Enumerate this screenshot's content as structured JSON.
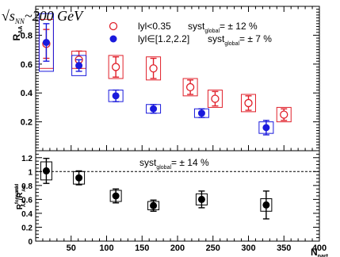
{
  "chart_data": [
    {
      "type": "scatter",
      "title": "√s_NN ~ 200 GeV",
      "title_parts": {
        "sqrt": "√",
        "s": "s",
        "sub": "NN",
        "rest": "~200 GeV"
      },
      "ylabel": {
        "main": "R",
        "sub": "AA"
      },
      "xlim": [
        0,
        400
      ],
      "ylim": [
        0,
        1.0
      ],
      "yticks": [
        "0.2",
        "0.4",
        "0.6",
        "0.8"
      ],
      "reference_line": 1.0,
      "legend": {
        "position": "top-right",
        "entries": [
          {
            "label": "lyl<0.35",
            "syst": "syst",
            "syst_sub": "global",
            "syst_val": "= ± 12 %",
            "marker": "open-circle",
            "color": "#e0202a"
          },
          {
            "label": "lyl∈[1.2,2.2]",
            "syst": "syst",
            "syst_sub": "global",
            "syst_val": "= ± 7 %",
            "marker": "filled-circle",
            "color": "#1a1adc"
          }
        ]
      },
      "series": [
        {
          "name": "lyl<0.35",
          "marker": "open-circle",
          "color": "#e0202a",
          "points": [
            {
              "x": 15,
              "y": 0.74,
              "err": 0.1,
              "syst": 0.17
            },
            {
              "x": 61,
              "y": 0.63,
              "err": 0.06,
              "syst": 0.06
            },
            {
              "x": 113,
              "y": 0.58,
              "err": 0.07,
              "syst": 0.08
            },
            {
              "x": 166,
              "y": 0.57,
              "err": 0.07,
              "syst": 0.08
            },
            {
              "x": 218,
              "y": 0.44,
              "err": 0.05,
              "syst": 0.06
            },
            {
              "x": 253,
              "y": 0.36,
              "err": 0.05,
              "syst": 0.06
            },
            {
              "x": 300,
              "y": 0.33,
              "err": 0.05,
              "syst": 0.06
            },
            {
              "x": 350,
              "y": 0.25,
              "err": 0.04,
              "syst": 0.05
            }
          ]
        },
        {
          "name": "lyl∈[1.2,2.2]",
          "marker": "filled-circle",
          "color": "#1a1adc",
          "points": [
            {
              "x": 15,
              "y": 0.75,
              "err": 0.13,
              "syst": 0.2
            },
            {
              "x": 61,
              "y": 0.59,
              "err": 0.04,
              "syst": 0.07
            },
            {
              "x": 113,
              "y": 0.38,
              "err": 0.04,
              "syst": 0.04
            },
            {
              "x": 166,
              "y": 0.29,
              "err": 0.03,
              "syst": 0.03
            },
            {
              "x": 234,
              "y": 0.26,
              "err": 0.03,
              "syst": 0.03
            },
            {
              "x": 325,
              "y": 0.16,
              "err": 0.05,
              "syst": 0.04
            }
          ]
        }
      ]
    },
    {
      "type": "scatter",
      "xlabel": {
        "main": "N",
        "sub": "part"
      },
      "ylabel": {
        "r": "R",
        "sup1": "forward",
        "sub1": "AA",
        "slash": "/R",
        "sup2": "mid",
        "sub2": "AA"
      },
      "xlim": [
        0,
        400
      ],
      "ylim": [
        0,
        1.3
      ],
      "xticks": [
        "50",
        "100",
        "150",
        "200",
        "250",
        "300",
        "350",
        "400"
      ],
      "yticks": [
        "0",
        "0.2",
        "0.4",
        "0.6",
        "0.8",
        "1",
        "1.2"
      ],
      "reference_line": 1.0,
      "annotation": {
        "syst": "syst",
        "sub": "global",
        "val": "= ± 14 %"
      },
      "series": [
        {
          "marker": "filled-circle",
          "color": "#000000",
          "points": [
            {
              "x": 15,
              "y": 1.01,
              "err": 0.18,
              "syst": 0.13
            },
            {
              "x": 61,
              "y": 0.91,
              "err": 0.1,
              "syst": 0.09
            },
            {
              "x": 113,
              "y": 0.65,
              "err": 0.1,
              "syst": 0.08
            },
            {
              "x": 166,
              "y": 0.51,
              "err": 0.08,
              "syst": 0.06
            },
            {
              "x": 234,
              "y": 0.6,
              "err": 0.12,
              "syst": 0.08
            },
            {
              "x": 325,
              "y": 0.52,
              "err": 0.2,
              "syst": 0.09
            }
          ]
        }
      ]
    }
  ]
}
